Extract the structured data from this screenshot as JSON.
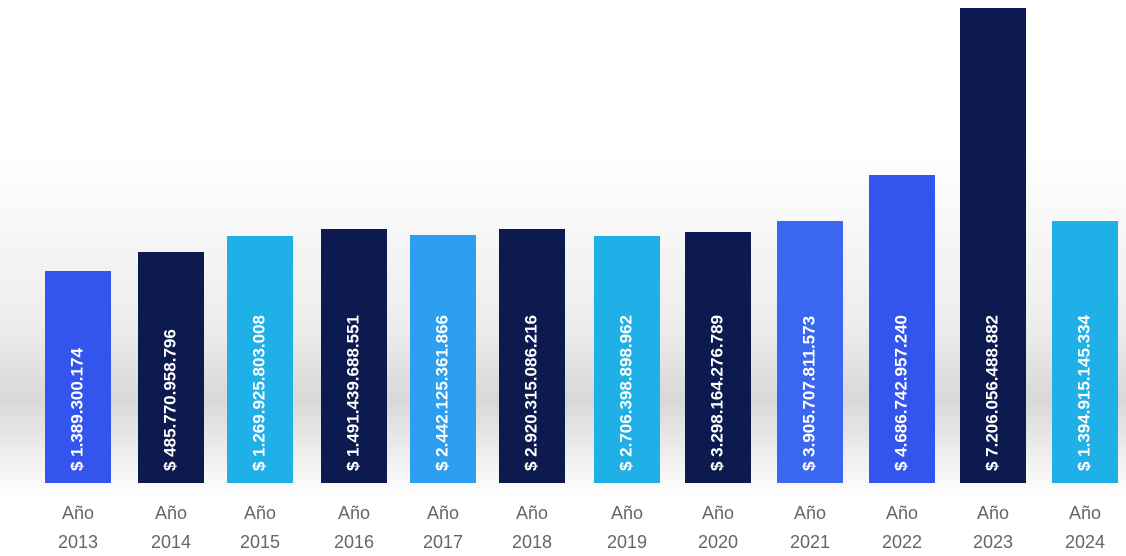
{
  "chart_data": {
    "type": "bar",
    "title": "",
    "xlabel": "",
    "ylabel": "",
    "categories": [
      "Año 2013",
      "Año 2014",
      "Año 2015",
      "Año 2016",
      "Año 2017",
      "Año 2018",
      "Año 2019",
      "Año 2020",
      "Año 2021",
      "Año 2022",
      "Año 2023",
      "Año 2024"
    ],
    "values": [
      1389300174,
      485770958796,
      1269925803008,
      1491439688551,
      2442125361866,
      2920315086216,
      2706398898962,
      3298164276789,
      3905707811573,
      4686742957240,
      7206056488882,
      1394915145334
    ],
    "data_labels": [
      "$ 1.389.300.174",
      "$ 485.770.958.796",
      "$ 1.269.925.803.008",
      "$ 1.491.439.688.551",
      "$ 2.442.125.361.866",
      "$ 2.920.315.086.216",
      "$ 2.706.398.898.962",
      "$ 3.298.164.276.789",
      "$ 3.905.707.811.573",
      "$ 4.686.742.957.240",
      "$ 7.206.056.488.882",
      "$ 1.394.915.145.334"
    ],
    "bar_colors": [
      "#3355ee",
      "#0d1a4f",
      "#1fb0e8",
      "#0d1a4f",
      "#2d9ff0",
      "#0d1a4f",
      "#1fb0e8",
      "#0d1a4f",
      "#3a66f0",
      "#3355ee",
      "#0d1a4f",
      "#1fb0e8"
    ],
    "tick_lines": [
      [
        "Año",
        "2013"
      ],
      [
        "Año",
        "2014"
      ],
      [
        "Año",
        "2015"
      ],
      [
        "Año",
        "2016"
      ],
      [
        "Año",
        "2017"
      ],
      [
        "Año",
        "2018"
      ],
      [
        "Año",
        "2019"
      ],
      [
        "Año",
        "2020"
      ],
      [
        "Año",
        "2021"
      ],
      [
        "Año",
        "2022"
      ],
      [
        "Año",
        "2023"
      ],
      [
        "Año",
        "2024"
      ]
    ],
    "grid": false,
    "legend": "none"
  }
}
